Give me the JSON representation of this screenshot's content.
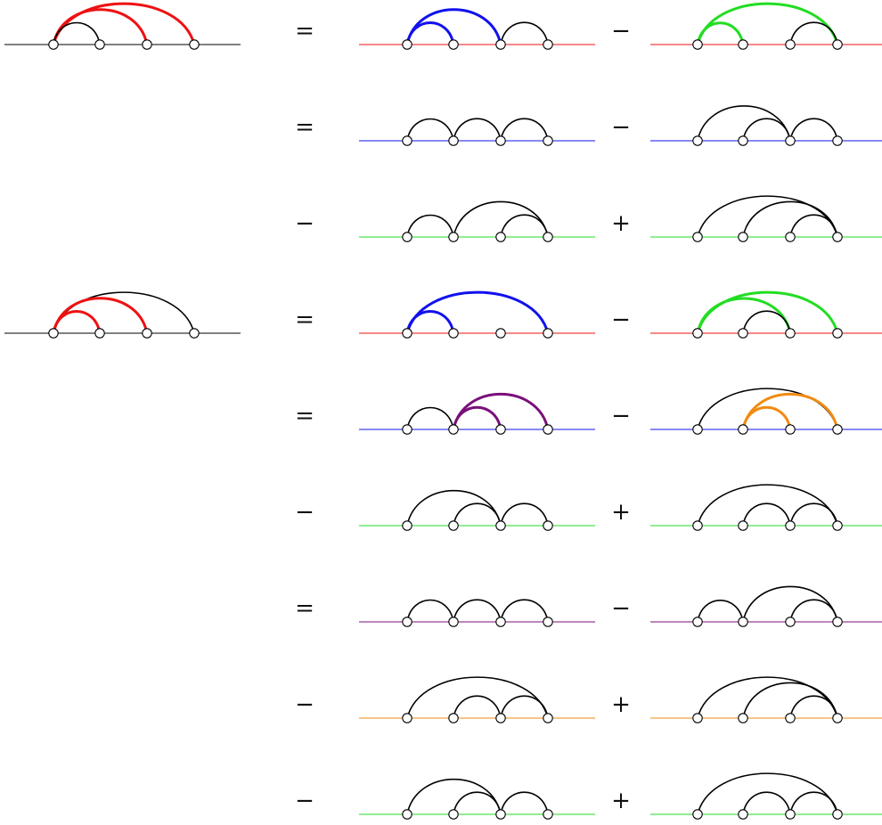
{
  "colors": {
    "black": "#000000",
    "red": "#ee1111",
    "blue": "#1111ee",
    "green": "#22dd22",
    "purple": "#7a0f7a",
    "orange": "#f28a10"
  },
  "rows": [
    {
      "lhs": {
        "arcs": [
          [
            1,
            2,
            "black"
          ],
          [
            1,
            3,
            "red"
          ],
          [
            1,
            4,
            "red"
          ]
        ]
      },
      "lead": "=",
      "left": {
        "line": "red",
        "arcs": [
          [
            1,
            2,
            "blue"
          ],
          [
            1,
            3,
            "blue"
          ],
          [
            3,
            4,
            "black"
          ]
        ]
      },
      "mid": "−",
      "right": {
        "line": "red",
        "arcs": [
          [
            1,
            2,
            "green"
          ],
          [
            3,
            4,
            "black"
          ],
          [
            1,
            4,
            "green"
          ]
        ]
      }
    },
    {
      "lead": "=",
      "left": {
        "line": "blue",
        "arcs": [
          [
            1,
            2,
            "black"
          ],
          [
            2,
            3,
            "black"
          ],
          [
            3,
            4,
            "black"
          ]
        ]
      },
      "mid": "−",
      "right": {
        "line": "blue",
        "arcs": [
          [
            1,
            3,
            "black"
          ],
          [
            2,
            3,
            "black"
          ],
          [
            3,
            4,
            "black"
          ]
        ]
      }
    },
    {
      "lead": "−",
      "left": {
        "line": "green",
        "arcs": [
          [
            1,
            2,
            "black"
          ],
          [
            2,
            4,
            "black"
          ],
          [
            3,
            4,
            "black"
          ]
        ]
      },
      "mid": "+",
      "right": {
        "line": "green",
        "arcs": [
          [
            1,
            4,
            "black"
          ],
          [
            2,
            4,
            "black"
          ],
          [
            3,
            4,
            "black"
          ]
        ]
      }
    },
    {
      "lhs": {
        "arcs": [
          [
            1,
            2,
            "red"
          ],
          [
            1,
            3,
            "red"
          ],
          [
            1,
            4,
            "black"
          ]
        ]
      },
      "lead": "=",
      "left": {
        "line": "red",
        "arcs": [
          [
            1,
            2,
            "blue"
          ],
          [
            1,
            4,
            "blue"
          ]
        ]
      },
      "mid": "−",
      "right": {
        "line": "red",
        "arcs": [
          [
            1,
            3,
            "green"
          ],
          [
            2,
            3,
            "black"
          ],
          [
            1,
            4,
            "green"
          ]
        ]
      }
    },
    {
      "lead": "=",
      "left": {
        "line": "blue",
        "arcs": [
          [
            1,
            2,
            "black"
          ],
          [
            2,
            3,
            "purple"
          ],
          [
            2,
            4,
            "purple"
          ]
        ]
      },
      "mid": "−",
      "right": {
        "line": "blue",
        "arcs": [
          [
            1,
            4,
            "black"
          ],
          [
            2,
            3,
            "orange"
          ],
          [
            2,
            4,
            "orange"
          ]
        ]
      }
    },
    {
      "lead": "−",
      "left": {
        "line": "green",
        "arcs": [
          [
            1,
            3,
            "black"
          ],
          [
            2,
            3,
            "black"
          ],
          [
            3,
            4,
            "black"
          ]
        ]
      },
      "mid": "+",
      "right": {
        "line": "green",
        "arcs": [
          [
            1,
            4,
            "black"
          ],
          [
            2,
            3,
            "black"
          ],
          [
            3,
            4,
            "black"
          ]
        ]
      }
    },
    {
      "lead": "=",
      "left": {
        "line": "purple",
        "arcs": [
          [
            1,
            2,
            "black"
          ],
          [
            2,
            3,
            "black"
          ],
          [
            3,
            4,
            "black"
          ]
        ]
      },
      "mid": "−",
      "right": {
        "line": "purple",
        "arcs": [
          [
            1,
            2,
            "black"
          ],
          [
            2,
            4,
            "black"
          ],
          [
            3,
            4,
            "black"
          ]
        ]
      }
    },
    {
      "lead": "−",
      "left": {
        "line": "orange",
        "arcs": [
          [
            1,
            4,
            "black"
          ],
          [
            2,
            3,
            "black"
          ],
          [
            3,
            4,
            "black"
          ]
        ]
      },
      "mid": "+",
      "right": {
        "line": "orange",
        "arcs": [
          [
            1,
            4,
            "black"
          ],
          [
            2,
            4,
            "black"
          ],
          [
            3,
            4,
            "black"
          ]
        ]
      }
    },
    {
      "lead": "−",
      "left": {
        "line": "green",
        "arcs": [
          [
            1,
            3,
            "black"
          ],
          [
            2,
            3,
            "black"
          ],
          [
            3,
            4,
            "black"
          ]
        ]
      },
      "mid": "+",
      "right": {
        "line": "green",
        "arcs": [
          [
            1,
            4,
            "black"
          ],
          [
            2,
            3,
            "black"
          ],
          [
            3,
            4,
            "black"
          ]
        ]
      }
    }
  ]
}
